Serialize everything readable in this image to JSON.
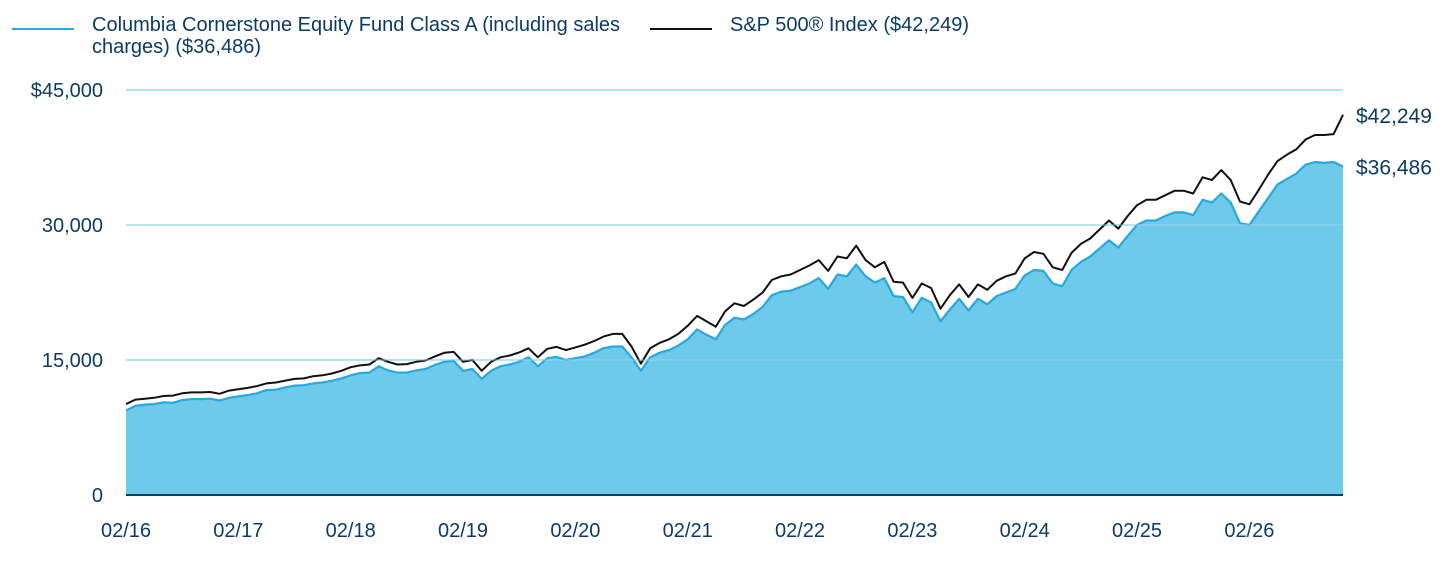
{
  "chart_data": {
    "type": "area",
    "title": "",
    "xlabel": "",
    "ylabel": "",
    "ylim": [
      0,
      45000
    ],
    "y_ticks": [
      0,
      15000,
      30000,
      45000
    ],
    "y_tick_labels": [
      "0",
      "15,000",
      "30,000",
      "$45,000"
    ],
    "x_ticks": [
      0,
      12,
      24,
      36,
      48,
      60,
      72,
      84,
      96,
      108,
      120
    ],
    "x_tick_labels": [
      "02/16",
      "02/17",
      "02/18",
      "02/19",
      "02/20",
      "02/21",
      "02/22",
      "02/23",
      "02/24",
      "02/25",
      "02/26"
    ],
    "grid": true,
    "legend_position": "top",
    "series": [
      {
        "name": "Columbia Cornerstone Equity Fund Class A (including sales charges) ($36,486)",
        "style": "filled area",
        "color": "#29a8df",
        "fill": "#6dcaea",
        "end_label": "$36,486",
        "values": [
          9400,
          9900,
          10050,
          10100,
          10300,
          10250,
          10550,
          10650,
          10650,
          10700,
          10500,
          10800,
          10950,
          11100,
          11300,
          11650,
          11700,
          11950,
          12150,
          12200,
          12400,
          12500,
          12700,
          12950,
          13300,
          13550,
          13600,
          14300,
          13850,
          13600,
          13600,
          13850,
          14000,
          14450,
          14800,
          14900,
          13800,
          14000,
          12900,
          13800,
          14300,
          14500,
          14800,
          15300,
          14300,
          15200,
          15350,
          15000,
          15200,
          15400,
          15800,
          16300,
          16500,
          16500,
          15300,
          13800,
          15300,
          15800,
          16100,
          16600,
          17300,
          18400,
          17800,
          17300,
          18900,
          19700,
          19500,
          20100,
          20900,
          22200,
          22600,
          22700,
          23100,
          23500,
          24100,
          22900,
          24500,
          24300,
          25600,
          24300,
          23600,
          24100,
          22100,
          22000,
          20300,
          21900,
          21400,
          19300,
          20600,
          21800,
          20500,
          21800,
          21200,
          22100,
          22500,
          22900,
          24400,
          25000,
          24900,
          23500,
          23200,
          25000,
          25900,
          26500,
          27400,
          28300,
          27500,
          28800,
          30000,
          30500,
          30500,
          31000,
          31400,
          31400,
          31100,
          32800,
          32500,
          33500,
          32500,
          30200,
          30000,
          31500,
          33000,
          34500,
          35100,
          35700,
          36700,
          37000,
          36900,
          37000,
          36486
        ]
      },
      {
        "name": "S&P 500® Index ($42,249)",
        "style": "line",
        "color": "#111111",
        "end_label": "$42,249",
        "values": [
          10100,
          10600,
          10700,
          10800,
          11000,
          11050,
          11300,
          11400,
          11400,
          11450,
          11250,
          11600,
          11750,
          11900,
          12100,
          12400,
          12500,
          12700,
          12900,
          12950,
          13200,
          13300,
          13500,
          13800,
          14200,
          14400,
          14500,
          15200,
          14800,
          14500,
          14550,
          14800,
          14950,
          15400,
          15800,
          15900,
          14800,
          15000,
          13800,
          14800,
          15300,
          15500,
          15850,
          16300,
          15300,
          16250,
          16450,
          16100,
          16400,
          16700,
          17100,
          17600,
          17900,
          17900,
          16500,
          14600,
          16300,
          16900,
          17300,
          17900,
          18800,
          19900,
          19300,
          18700,
          20400,
          21300,
          21000,
          21700,
          22500,
          23900,
          24300,
          24500,
          25000,
          25500,
          26100,
          24900,
          26500,
          26300,
          27700,
          26100,
          25300,
          25900,
          23700,
          23600,
          21900,
          23500,
          23000,
          20700,
          22200,
          23400,
          22000,
          23400,
          22800,
          23800,
          24300,
          24600,
          26300,
          27000,
          26800,
          25300,
          25000,
          26900,
          27900,
          28500,
          29500,
          30500,
          29600,
          31000,
          32200,
          32800,
          32800,
          33300,
          33800,
          33800,
          33500,
          35300,
          35000,
          36100,
          35000,
          32600,
          32300,
          33900,
          35600,
          37100,
          37800,
          38400,
          39500,
          40000,
          40000,
          40100,
          42249
        ]
      }
    ]
  },
  "colors": {
    "text": "#0d3b66",
    "grid": "#a6dcef",
    "axis": "#0d3b66",
    "fund_line": "#29a8df",
    "fund_fill": "#6dcaea",
    "index_line": "#111111"
  }
}
